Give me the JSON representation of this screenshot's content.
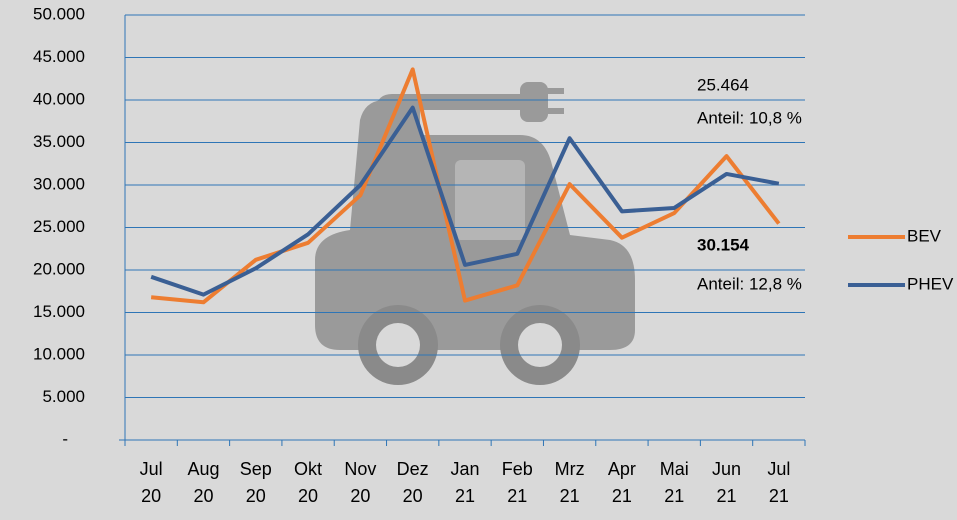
{
  "chart_data": {
    "type": "line",
    "categories": [
      "Jul 20",
      "Aug 20",
      "Sep 20",
      "Okt 20",
      "Nov 20",
      "Dez 20",
      "Jan 21",
      "Feb 21",
      "Mrz 21",
      "Apr 21",
      "Mai 21",
      "Jun 21",
      "Jul 21"
    ],
    "series": [
      {
        "name": "BEV",
        "color": "#ed7d31",
        "values": [
          16800,
          16200,
          21200,
          23200,
          28800,
          43600,
          16400,
          18200,
          30100,
          23800,
          26700,
          33400,
          25464
        ]
      },
      {
        "name": "PHEV",
        "color": "#3a5f94",
        "values": [
          19200,
          17100,
          20200,
          24200,
          30000,
          39100,
          20600,
          21900,
          35500,
          26900,
          27300,
          31300,
          30154
        ]
      }
    ],
    "ylim": [
      0,
      50000
    ],
    "yticks": [
      {
        "value": 0,
        "label": "-"
      },
      {
        "value": 5000,
        "label": "5.000"
      },
      {
        "value": 10000,
        "label": "10.000"
      },
      {
        "value": 15000,
        "label": "15.000"
      },
      {
        "value": 20000,
        "label": "20.000"
      },
      {
        "value": 25000,
        "label": "25.000"
      },
      {
        "value": 30000,
        "label": "30.000"
      },
      {
        "value": 35000,
        "label": "35.000"
      },
      {
        "value": 40000,
        "label": "40.000"
      },
      {
        "value": 45000,
        "label": "45.000"
      },
      {
        "value": 50000,
        "label": "50.000"
      }
    ],
    "grid": true,
    "legend": "right",
    "annotations": [
      {
        "text": "25.464",
        "color": "#ed7d31",
        "bold": false
      },
      {
        "text": "Anteil: 10,8 %",
        "color": "#ed7d31",
        "bold": false
      },
      {
        "text": "30.154",
        "color": "#2f5597",
        "bold": true
      },
      {
        "text": "Anteil: 12,8 %",
        "color": "#2f5597",
        "bold": false
      }
    ]
  }
}
